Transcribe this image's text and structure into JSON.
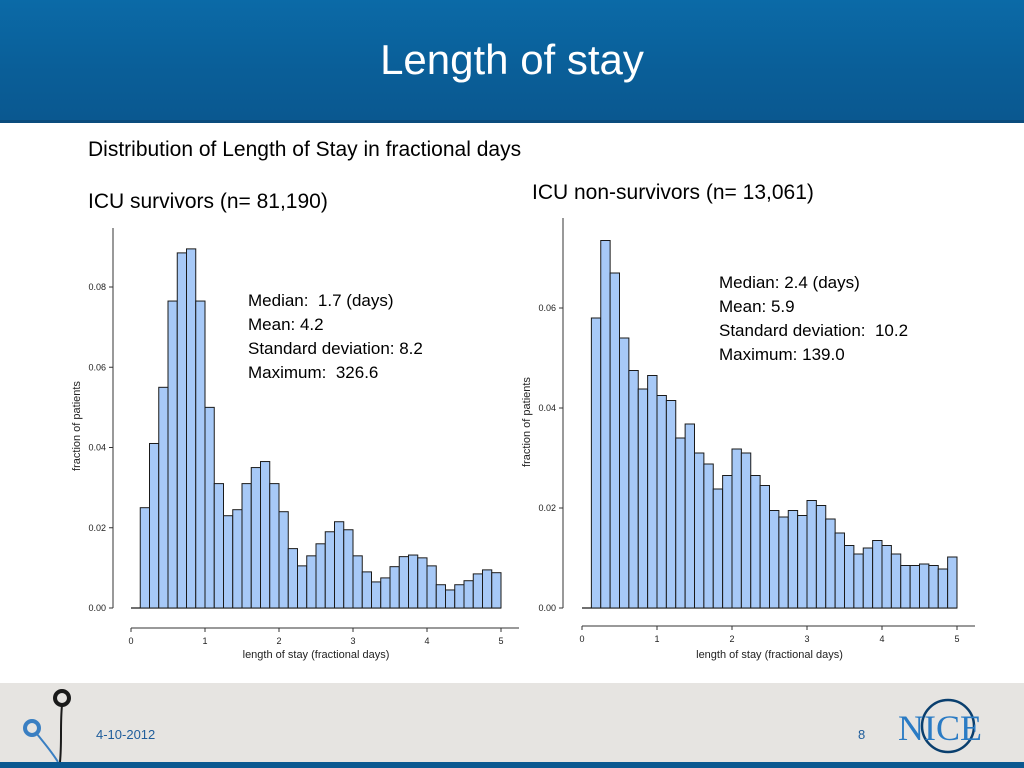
{
  "slide": {
    "title": "Length of stay",
    "subtitle": "Distribution of Length of Stay in fractional days",
    "left_heading": "ICU survivors (n= 81,190)",
    "right_heading": "ICU non-survivors (n= 13,061)",
    "left_stats": [
      "Median:  1.7 (days)",
      "Mean: 4.2",
      "Standard deviation: 8.2",
      "Maximum:  326.6"
    ],
    "right_stats": [
      "Median: 2.4 (days)",
      "Mean: 5.9",
      "Standard deviation:  10.2",
      "Maximum: 139.0"
    ]
  },
  "footer": {
    "date": "4-10-2012",
    "page": "8",
    "logo_text": "NICE"
  },
  "colors": {
    "title_bar": "#0a5f99",
    "bar_fill": "#a7c9f7",
    "bar_stroke": "#1a1a1a",
    "footer_bg": "#e6e4e1",
    "footer_text": "#1f5d9b"
  },
  "chart_data": [
    {
      "type": "bar",
      "title": "",
      "xlabel": "length of stay (fractional days)",
      "ylabel": "fraction of patients",
      "xlim": [
        0,
        5
      ],
      "ylim": [
        0,
        0.094
      ],
      "bin_width": 0.125,
      "x_ticks": [
        "0",
        "1",
        "2",
        "3",
        "4",
        "5"
      ],
      "y_ticks": [
        "0.00",
        "0.02",
        "0.04",
        "0.06",
        "0.08"
      ],
      "bin_starts": [
        0.125,
        0.25,
        0.375,
        0.5,
        0.625,
        0.75,
        0.875,
        1.0,
        1.125,
        1.25,
        1.375,
        1.5,
        1.625,
        1.75,
        1.875,
        2.0,
        2.125,
        2.25,
        2.375,
        2.5,
        2.625,
        2.75,
        2.875,
        3.0,
        3.125,
        3.25,
        3.375,
        3.5,
        3.625,
        3.75,
        3.875,
        4.0,
        4.125,
        4.25,
        4.375,
        4.5,
        4.625,
        4.75,
        4.875
      ],
      "values": [
        0.025,
        0.041,
        0.055,
        0.0765,
        0.0885,
        0.0895,
        0.0765,
        0.05,
        0.031,
        0.023,
        0.0245,
        0.031,
        0.035,
        0.0365,
        0.031,
        0.024,
        0.0148,
        0.0105,
        0.013,
        0.016,
        0.019,
        0.0215,
        0.0195,
        0.013,
        0.009,
        0.0065,
        0.0075,
        0.0103,
        0.0128,
        0.0132,
        0.0125,
        0.0105,
        0.0058,
        0.0045,
        0.0058,
        0.0068,
        0.0085,
        0.0095,
        0.0088
      ],
      "grid": false
    },
    {
      "type": "bar",
      "title": "",
      "xlabel": "length of stay (fractional days)",
      "ylabel": "fraction of patients",
      "xlim": [
        0,
        5
      ],
      "ylim": [
        0,
        0.077
      ],
      "bin_width": 0.125,
      "x_ticks": [
        "0",
        "1",
        "2",
        "3",
        "4",
        "5"
      ],
      "y_ticks": [
        "0.00",
        "0.02",
        "0.04",
        "0.06"
      ],
      "bin_starts": [
        0.125,
        0.25,
        0.375,
        0.5,
        0.625,
        0.75,
        0.875,
        1.0,
        1.125,
        1.25,
        1.375,
        1.5,
        1.625,
        1.75,
        1.875,
        2.0,
        2.125,
        2.25,
        2.375,
        2.5,
        2.625,
        2.75,
        2.875,
        3.0,
        3.125,
        3.25,
        3.375,
        3.5,
        3.625,
        3.75,
        3.875,
        4.0,
        4.125,
        4.25,
        4.375,
        4.5,
        4.625,
        4.75,
        4.875
      ],
      "values": [
        0.058,
        0.0735,
        0.067,
        0.054,
        0.0475,
        0.0438,
        0.0465,
        0.0425,
        0.0415,
        0.034,
        0.0368,
        0.031,
        0.0288,
        0.0238,
        0.0265,
        0.0318,
        0.031,
        0.0265,
        0.0245,
        0.0195,
        0.0182,
        0.0195,
        0.0185,
        0.0215,
        0.0205,
        0.0178,
        0.015,
        0.0125,
        0.0108,
        0.012,
        0.0135,
        0.0125,
        0.0108,
        0.0085,
        0.0085,
        0.0088,
        0.0085,
        0.0078,
        0.0102
      ],
      "grid": false
    }
  ]
}
